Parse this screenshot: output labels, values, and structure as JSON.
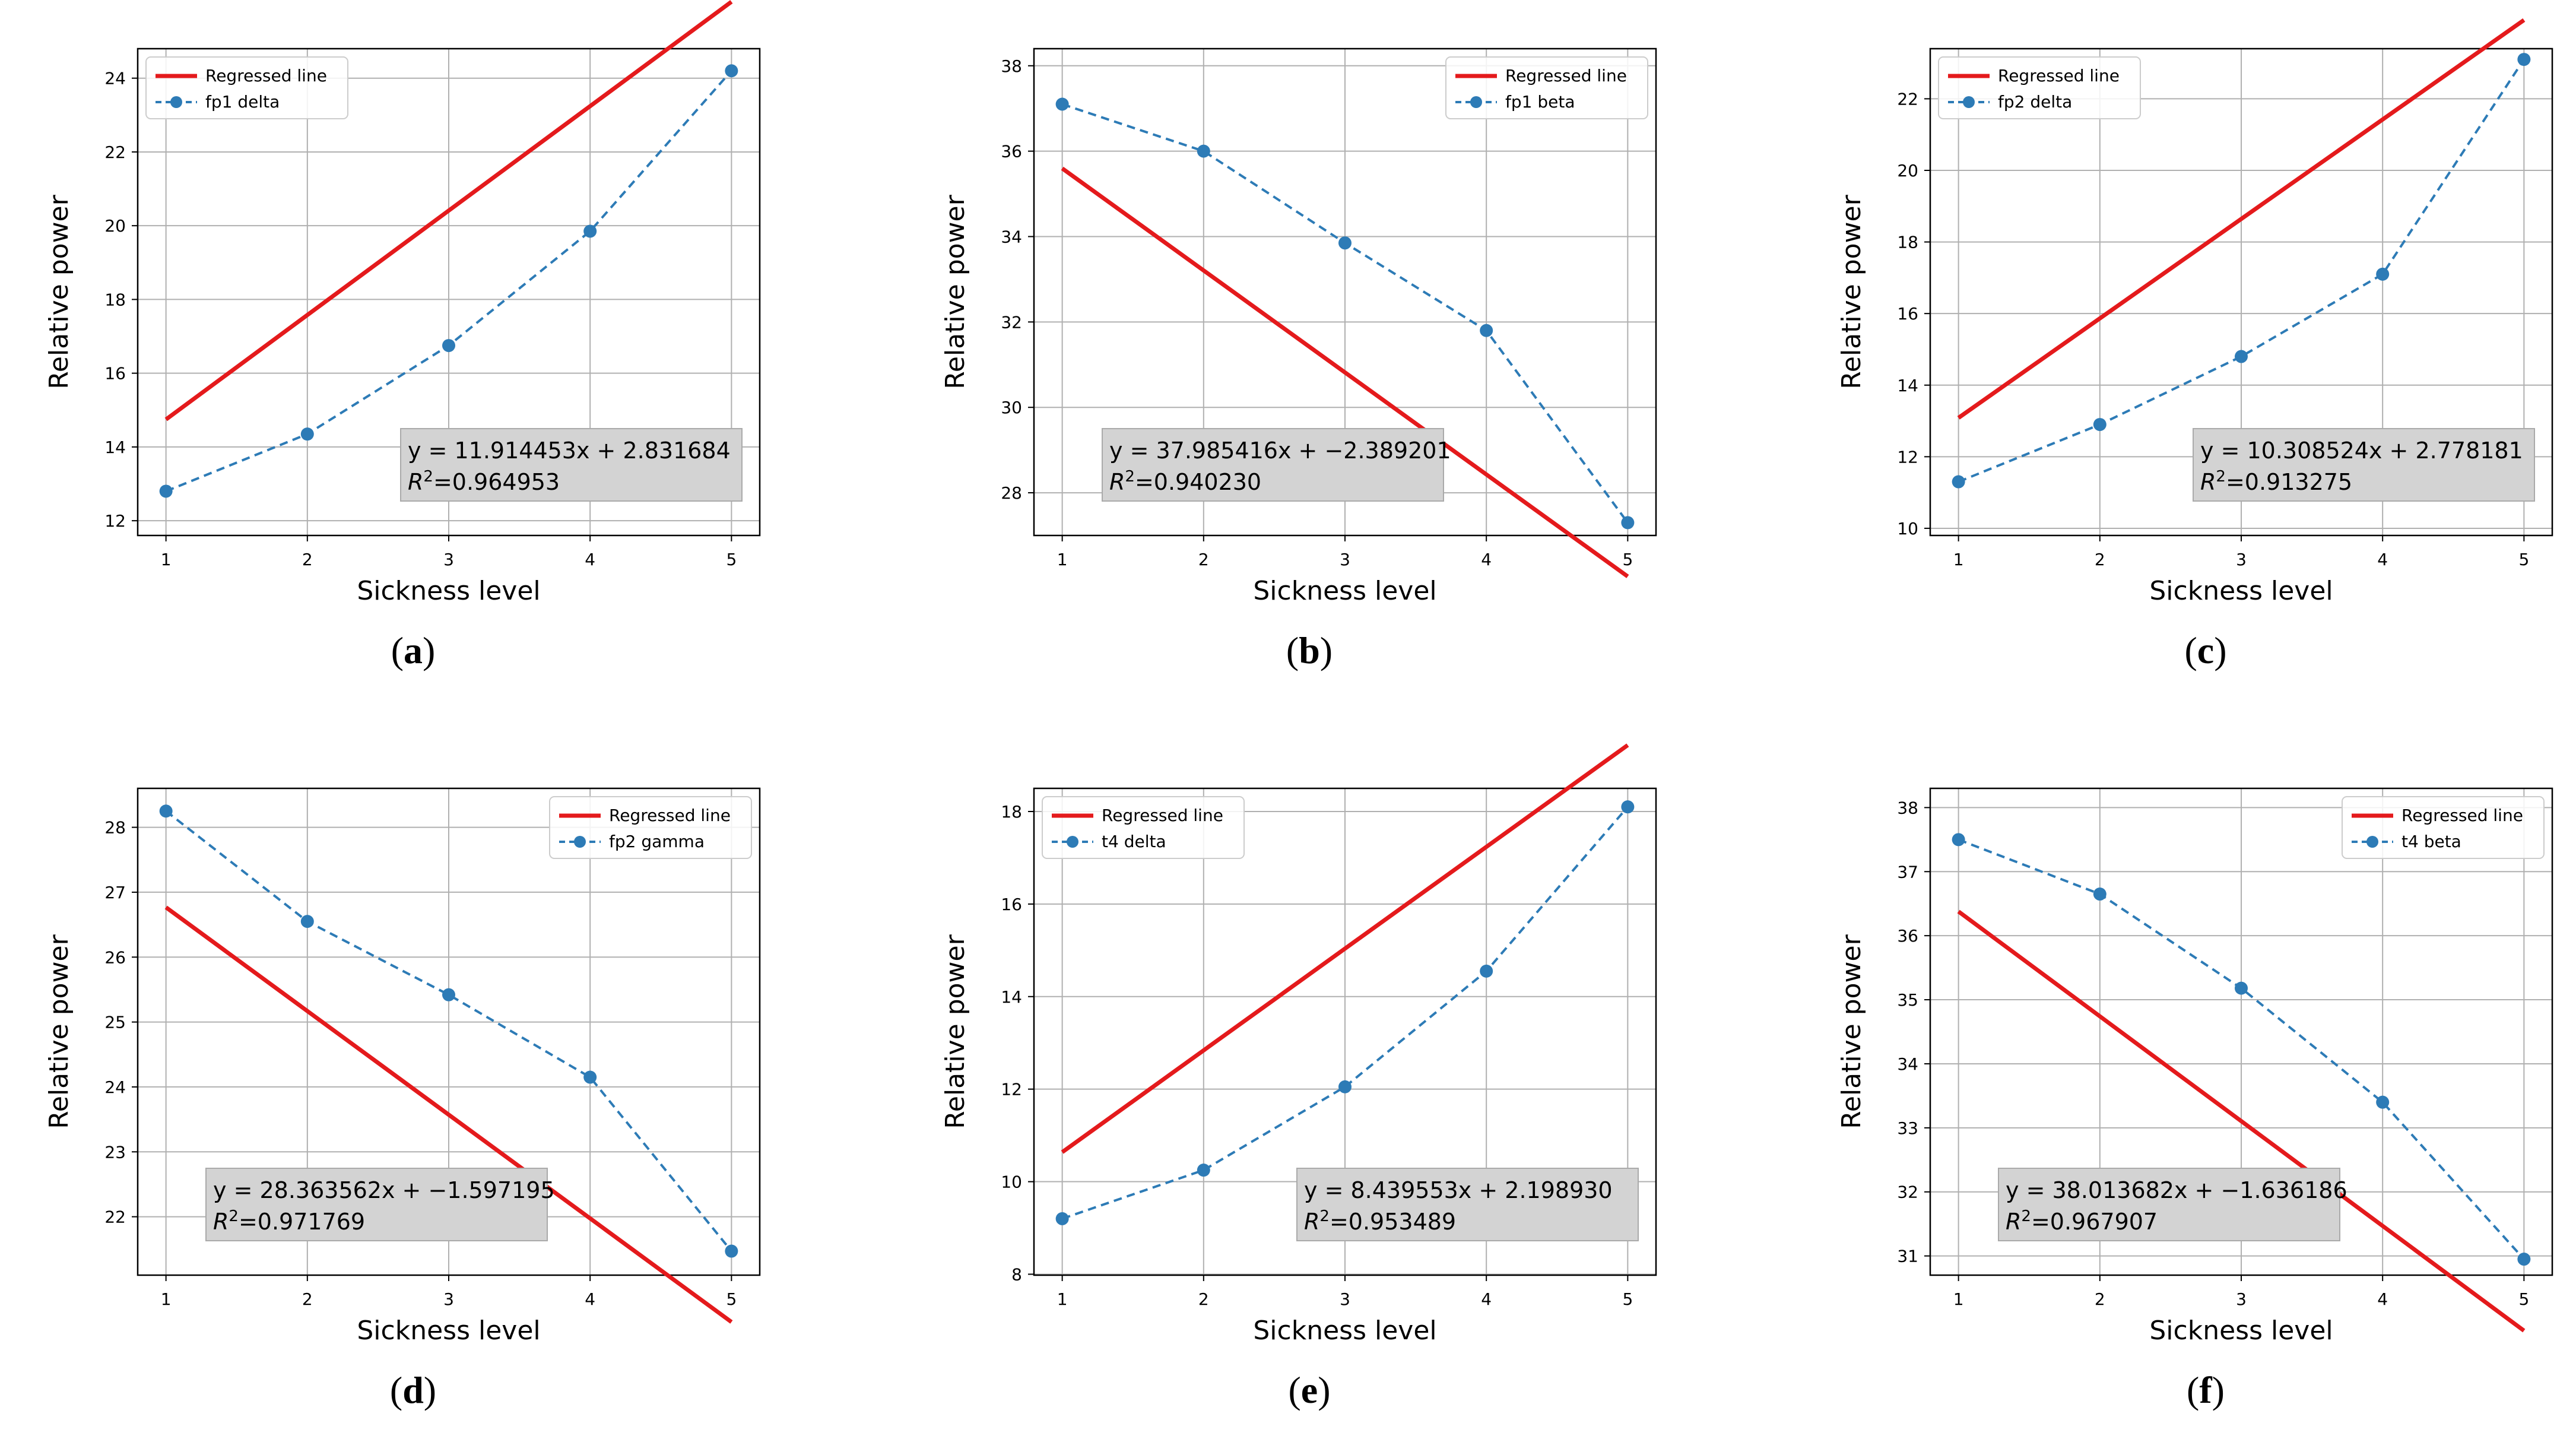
{
  "figure": {
    "x_values": [
      1,
      2,
      3,
      4,
      5
    ],
    "xlabel": "Sickness level",
    "ylabel": "Relative power",
    "legend_regressed": "Regressed line",
    "colors": {
      "regressed": "#e41a1c",
      "series": "#2d7bb6",
      "grid": "#b0b0b0",
      "annot_bg": "#d3d3d3",
      "annot_border": "#aaaaaa"
    }
  },
  "chart_data": [
    {
      "type": "line",
      "panel": "a",
      "caption_letter": "a",
      "series_name": "fp1 delta",
      "x": [
        1,
        2,
        3,
        4,
        5
      ],
      "values": [
        12.8,
        14.35,
        16.75,
        19.85,
        24.2
      ],
      "regression": {
        "intercept": 11.914453,
        "slope": 2.831684
      },
      "equation_text": "y = 11.914453x + 2.831684",
      "r2_text": "=0.964953",
      "ylim": [
        11.6,
        24.8
      ],
      "yticks": [
        12,
        14,
        16,
        18,
        20,
        22,
        24
      ],
      "legend_position": "upper-left",
      "annotation_position": "lower-right"
    },
    {
      "type": "line",
      "panel": "b",
      "caption_letter": "b",
      "series_name": "fp1 beta",
      "x": [
        1,
        2,
        3,
        4,
        5
      ],
      "values": [
        37.1,
        36.0,
        33.85,
        31.8,
        27.3
      ],
      "regression": {
        "intercept": 37.985416,
        "slope": -2.389201
      },
      "equation_text": "y = 37.985416x + −2.389201",
      "r2_text": "=0.940230",
      "ylim": [
        27.0,
        38.4
      ],
      "yticks": [
        28,
        30,
        32,
        34,
        36,
        38
      ],
      "legend_position": "upper-right",
      "annotation_position": "lower-left"
    },
    {
      "type": "line",
      "panel": "c",
      "caption_letter": "c",
      "series_name": "fp2 delta",
      "x": [
        1,
        2,
        3,
        4,
        5
      ],
      "values": [
        11.3,
        12.9,
        14.8,
        17.1,
        23.1
      ],
      "regression": {
        "intercept": 10.308524,
        "slope": 2.778181
      },
      "equation_text": "y = 10.308524x + 2.778181",
      "r2_text": "=0.913275",
      "ylim": [
        9.8,
        23.4
      ],
      "yticks": [
        10,
        12,
        14,
        16,
        18,
        20,
        22
      ],
      "legend_position": "upper-left",
      "annotation_position": "lower-right"
    },
    {
      "type": "line",
      "panel": "d",
      "caption_letter": "d",
      "series_name": "fp2 gamma",
      "x": [
        1,
        2,
        3,
        4,
        5
      ],
      "values": [
        28.25,
        26.55,
        25.42,
        24.15,
        21.47
      ],
      "regression": {
        "intercept": 28.363562,
        "slope": -1.597195
      },
      "equation_text": "y = 28.363562x + −1.597195",
      "r2_text": "=0.971769",
      "ylim": [
        21.1,
        28.6
      ],
      "yticks": [
        22,
        23,
        24,
        25,
        26,
        27,
        28
      ],
      "legend_position": "upper-right",
      "annotation_position": "lower-left"
    },
    {
      "type": "line",
      "panel": "e",
      "caption_letter": "e",
      "series_name": "t4 delta",
      "x": [
        1,
        2,
        3,
        4,
        5
      ],
      "values": [
        9.2,
        10.25,
        12.05,
        14.55,
        18.1
      ],
      "regression": {
        "intercept": 8.439553,
        "slope": 2.19893
      },
      "equation_text": "y = 8.439553x + 2.198930",
      "r2_text": "=0.953489",
      "ylim": [
        7.98,
        18.5
      ],
      "yticks": [
        8,
        10,
        12,
        14,
        16,
        18
      ],
      "legend_position": "upper-left",
      "annotation_position": "lower-right"
    },
    {
      "type": "line",
      "panel": "f",
      "caption_letter": "f",
      "series_name": "t4 beta",
      "x": [
        1,
        2,
        3,
        4,
        5
      ],
      "values": [
        37.5,
        36.65,
        35.18,
        33.4,
        30.95
      ],
      "regression": {
        "intercept": 38.013682,
        "slope": -1.636186
      },
      "equation_text": "y = 38.013682x + −1.636186",
      "r2_text": "=0.967907",
      "ylim": [
        30.7,
        38.3
      ],
      "yticks": [
        31,
        32,
        33,
        34,
        35,
        36,
        37,
        38
      ],
      "legend_position": "upper-right",
      "annotation_position": "lower-left"
    }
  ]
}
